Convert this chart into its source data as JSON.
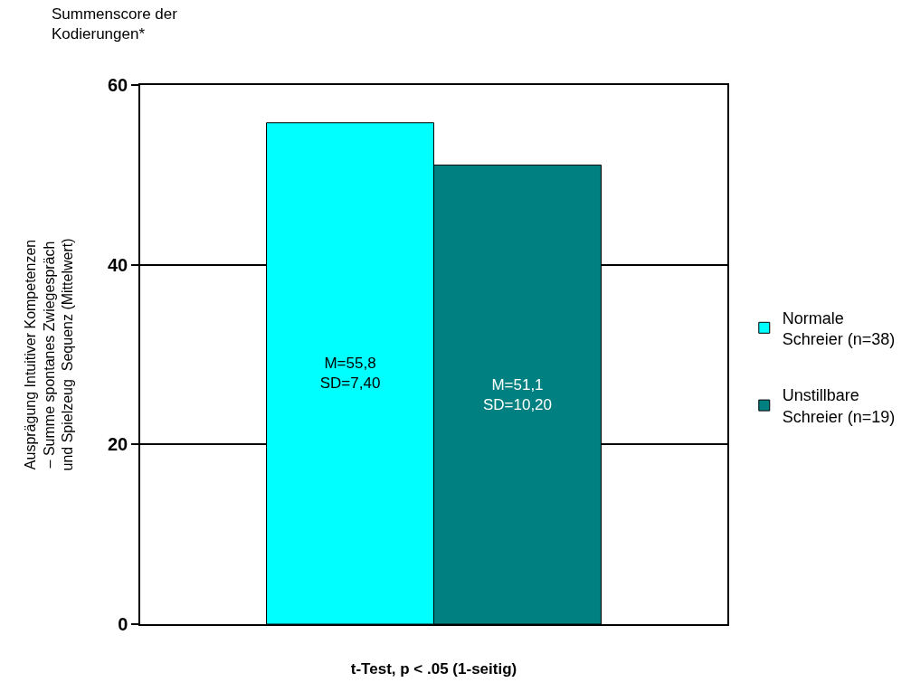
{
  "chart_data": {
    "type": "bar",
    "title": "Summenscore der\nKodierungen*",
    "ylabel": "Ausprägung Intuitiver Kompetenzen\n– Summe spontanes Zwiegespräch\nund Spielzeug  Sequenz (Mittelwert)",
    "xlabel": "t-Test, p < .05 (1-seitig)",
    "categories": [
      null
    ],
    "series": [
      {
        "name": "Normale\nSchreier (n=38)",
        "color": "#00ffff",
        "values": [
          55.8
        ],
        "value_labels": [
          "M=55,8\nSD=7,40"
        ]
      },
      {
        "name": "Unstillbare\nSchreier (n=19)",
        "color": "#008080",
        "values": [
          51.1
        ],
        "value_labels": [
          "M=51,1\nSD=10,20"
        ]
      }
    ],
    "ylim": [
      0,
      60
    ],
    "yticks": [
      0,
      20,
      40,
      60
    ],
    "grid": "y",
    "legend": "right"
  }
}
